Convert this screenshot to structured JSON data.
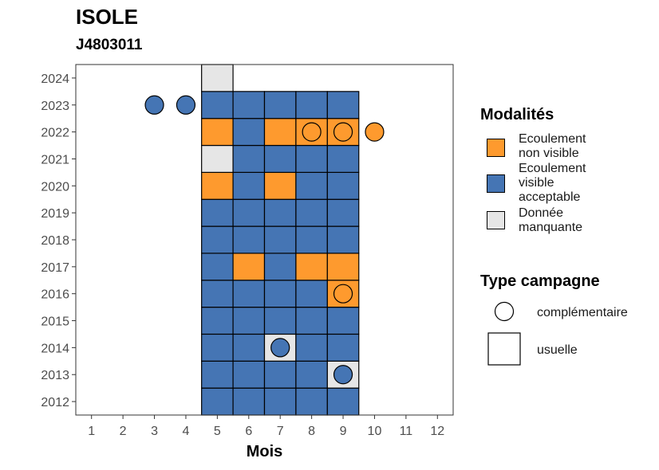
{
  "chart_data": {
    "type": "heatmap",
    "title": "ISOLE",
    "subtitle": "J4803011",
    "xlabel": "Mois",
    "ylabel": "",
    "x_ticks": [
      1,
      2,
      3,
      4,
      5,
      6,
      7,
      8,
      9,
      10,
      11,
      12
    ],
    "y_ticks": [
      2012,
      2013,
      2014,
      2015,
      2016,
      2017,
      2018,
      2019,
      2020,
      2021,
      2022,
      2023,
      2024
    ],
    "xlim": [
      0.5,
      12.5
    ],
    "ylim": [
      2011.5,
      2024.5
    ],
    "colors": {
      "Ecoulement non visible": "#FE9A2E",
      "Ecoulement visible acceptable": "#4575B4",
      "Donnée manquante": "#E6E6E6"
    },
    "squares": [
      {
        "year": 2012,
        "month": 5,
        "value": "Ecoulement visible acceptable"
      },
      {
        "year": 2012,
        "month": 6,
        "value": "Ecoulement visible acceptable"
      },
      {
        "year": 2012,
        "month": 7,
        "value": "Ecoulement visible acceptable"
      },
      {
        "year": 2012,
        "month": 8,
        "value": "Ecoulement visible acceptable"
      },
      {
        "year": 2012,
        "month": 9,
        "value": "Ecoulement visible acceptable"
      },
      {
        "year": 2013,
        "month": 5,
        "value": "Ecoulement visible acceptable"
      },
      {
        "year": 2013,
        "month": 6,
        "value": "Ecoulement visible acceptable"
      },
      {
        "year": 2013,
        "month": 7,
        "value": "Ecoulement visible acceptable"
      },
      {
        "year": 2013,
        "month": 8,
        "value": "Ecoulement visible acceptable"
      },
      {
        "year": 2013,
        "month": 9,
        "value": "Donnée manquante"
      },
      {
        "year": 2014,
        "month": 5,
        "value": "Ecoulement visible acceptable"
      },
      {
        "year": 2014,
        "month": 6,
        "value": "Ecoulement visible acceptable"
      },
      {
        "year": 2014,
        "month": 7,
        "value": "Donnée manquante"
      },
      {
        "year": 2014,
        "month": 8,
        "value": "Ecoulement visible acceptable"
      },
      {
        "year": 2014,
        "month": 9,
        "value": "Ecoulement visible acceptable"
      },
      {
        "year": 2015,
        "month": 5,
        "value": "Ecoulement visible acceptable"
      },
      {
        "year": 2015,
        "month": 6,
        "value": "Ecoulement visible acceptable"
      },
      {
        "year": 2015,
        "month": 7,
        "value": "Ecoulement visible acceptable"
      },
      {
        "year": 2015,
        "month": 8,
        "value": "Ecoulement visible acceptable"
      },
      {
        "year": 2015,
        "month": 9,
        "value": "Ecoulement visible acceptable"
      },
      {
        "year": 2016,
        "month": 5,
        "value": "Ecoulement visible acceptable"
      },
      {
        "year": 2016,
        "month": 6,
        "value": "Ecoulement visible acceptable"
      },
      {
        "year": 2016,
        "month": 7,
        "value": "Ecoulement visible acceptable"
      },
      {
        "year": 2016,
        "month": 8,
        "value": "Ecoulement visible acceptable"
      },
      {
        "year": 2016,
        "month": 9,
        "value": "Ecoulement non visible"
      },
      {
        "year": 2017,
        "month": 5,
        "value": "Ecoulement visible acceptable"
      },
      {
        "year": 2017,
        "month": 6,
        "value": "Ecoulement non visible"
      },
      {
        "year": 2017,
        "month": 7,
        "value": "Ecoulement visible acceptable"
      },
      {
        "year": 2017,
        "month": 8,
        "value": "Ecoulement non visible"
      },
      {
        "year": 2017,
        "month": 9,
        "value": "Ecoulement non visible"
      },
      {
        "year": 2018,
        "month": 5,
        "value": "Ecoulement visible acceptable"
      },
      {
        "year": 2018,
        "month": 6,
        "value": "Ecoulement visible acceptable"
      },
      {
        "year": 2018,
        "month": 7,
        "value": "Ecoulement visible acceptable"
      },
      {
        "year": 2018,
        "month": 8,
        "value": "Ecoulement visible acceptable"
      },
      {
        "year": 2018,
        "month": 9,
        "value": "Ecoulement visible acceptable"
      },
      {
        "year": 2019,
        "month": 5,
        "value": "Ecoulement visible acceptable"
      },
      {
        "year": 2019,
        "month": 6,
        "value": "Ecoulement visible acceptable"
      },
      {
        "year": 2019,
        "month": 7,
        "value": "Ecoulement visible acceptable"
      },
      {
        "year": 2019,
        "month": 8,
        "value": "Ecoulement visible acceptable"
      },
      {
        "year": 2019,
        "month": 9,
        "value": "Ecoulement visible acceptable"
      },
      {
        "year": 2020,
        "month": 5,
        "value": "Ecoulement non visible"
      },
      {
        "year": 2020,
        "month": 6,
        "value": "Ecoulement visible acceptable"
      },
      {
        "year": 2020,
        "month": 7,
        "value": "Ecoulement non visible"
      },
      {
        "year": 2020,
        "month": 8,
        "value": "Ecoulement visible acceptable"
      },
      {
        "year": 2020,
        "month": 9,
        "value": "Ecoulement visible acceptable"
      },
      {
        "year": 2021,
        "month": 5,
        "value": "Donnée manquante"
      },
      {
        "year": 2021,
        "month": 6,
        "value": "Ecoulement visible acceptable"
      },
      {
        "year": 2021,
        "month": 7,
        "value": "Ecoulement visible acceptable"
      },
      {
        "year": 2021,
        "month": 8,
        "value": "Ecoulement visible acceptable"
      },
      {
        "year": 2021,
        "month": 9,
        "value": "Ecoulement visible acceptable"
      },
      {
        "year": 2022,
        "month": 5,
        "value": "Ecoulement non visible"
      },
      {
        "year": 2022,
        "month": 6,
        "value": "Ecoulement visible acceptable"
      },
      {
        "year": 2022,
        "month": 7,
        "value": "Ecoulement non visible"
      },
      {
        "year": 2022,
        "month": 8,
        "value": "Ecoulement non visible"
      },
      {
        "year": 2022,
        "month": 9,
        "value": "Ecoulement non visible"
      },
      {
        "year": 2023,
        "month": 5,
        "value": "Ecoulement visible acceptable"
      },
      {
        "year": 2023,
        "month": 6,
        "value": "Ecoulement visible acceptable"
      },
      {
        "year": 2023,
        "month": 7,
        "value": "Ecoulement visible acceptable"
      },
      {
        "year": 2023,
        "month": 8,
        "value": "Ecoulement visible acceptable"
      },
      {
        "year": 2023,
        "month": 9,
        "value": "Ecoulement visible acceptable"
      },
      {
        "year": 2024,
        "month": 5,
        "value": "Donnée manquante"
      }
    ],
    "circles": [
      {
        "year": 2013,
        "month": 9,
        "value": "Ecoulement visible acceptable"
      },
      {
        "year": 2014,
        "month": 7,
        "value": "Ecoulement visible acceptable"
      },
      {
        "year": 2016,
        "month": 9,
        "value": "Ecoulement non visible"
      },
      {
        "year": 2022,
        "month": 8,
        "value": "Ecoulement non visible"
      },
      {
        "year": 2022,
        "month": 9,
        "value": "Ecoulement non visible"
      },
      {
        "year": 2022,
        "month": 10,
        "value": "Ecoulement non visible"
      },
      {
        "year": 2023,
        "month": 3,
        "value": "Ecoulement visible acceptable"
      },
      {
        "year": 2023,
        "month": 4,
        "value": "Ecoulement visible acceptable"
      }
    ],
    "legend": {
      "placement": "right",
      "fill_title": "Modalités",
      "fill_items": [
        {
          "label_line1": "Ecoulement",
          "label_line2": "non visible",
          "label_line3": "",
          "key": "Ecoulement non visible"
        },
        {
          "label_line1": "Ecoulement",
          "label_line2": "visible",
          "label_line3": "acceptable",
          "key": "Ecoulement visible acceptable"
        },
        {
          "label_line1": "Donnée",
          "label_line2": "manquante",
          "label_line3": "",
          "key": "Donnée manquante"
        }
      ],
      "shape_title": "Type campagne",
      "shape_items": [
        {
          "label": "complémentaire",
          "shape": "circle"
        },
        {
          "label": "usuelle",
          "shape": "square"
        }
      ]
    },
    "grid": false
  }
}
